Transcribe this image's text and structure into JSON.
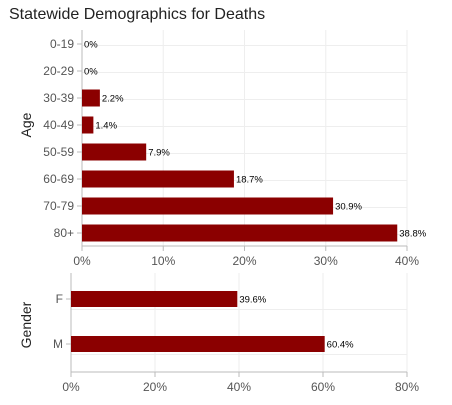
{
  "title": "Statewide Demographics for Deaths",
  "colors": {
    "bar": "#8b0000",
    "grid": "#eeeeee",
    "axis": "#bbbbbb"
  },
  "chart_data": [
    {
      "type": "bar",
      "orientation": "horizontal",
      "ylabel": "Age",
      "categories": [
        "0-19",
        "20-29",
        "30-39",
        "40-49",
        "50-59",
        "60-69",
        "70-79",
        "80+"
      ],
      "values": [
        0,
        0,
        2.2,
        1.4,
        7.9,
        18.7,
        30.9,
        38.8
      ],
      "data_labels": [
        "0%",
        "0%",
        "2.2%",
        "1.4%",
        "7.9%",
        "18.7%",
        "30.9%",
        "38.8%"
      ],
      "xlim": [
        0,
        40
      ],
      "xticks": [
        "0%",
        "10%",
        "20%",
        "30%",
        "40%"
      ],
      "grid": true
    },
    {
      "type": "bar",
      "orientation": "horizontal",
      "ylabel": "Gender",
      "categories": [
        "F",
        "M"
      ],
      "values": [
        39.6,
        60.4
      ],
      "data_labels": [
        "39.6%",
        "60.4%"
      ],
      "xlim": [
        0,
        80
      ],
      "xticks": [
        "0%",
        "20%",
        "40%",
        "60%",
        "80%"
      ],
      "grid": true
    }
  ]
}
